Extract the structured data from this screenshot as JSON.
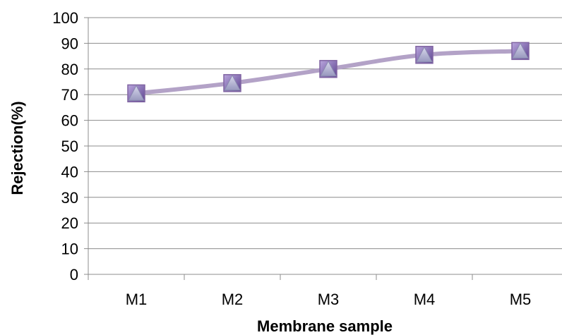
{
  "chart_data": {
    "type": "line",
    "categories": [
      "M1",
      "M2",
      "M3",
      "M4",
      "M5"
    ],
    "series": [
      {
        "values": [
          70.5,
          74.5,
          80,
          85.5,
          87
        ]
      }
    ],
    "xlabel": "Membrane sample",
    "ylabel": "Rejection(%)",
    "ylim": [
      0,
      100
    ],
    "yticks": [
      "0",
      "10",
      "20",
      "30",
      "40",
      "50",
      "60",
      "70",
      "80",
      "90",
      "100"
    ],
    "grid": true,
    "legend": "none",
    "colors": {
      "line": "#b3a2c7",
      "marker_square": "#8064a2",
      "marker_triangle": "#a6a6c8",
      "grid": "#8c8c8c"
    }
  }
}
